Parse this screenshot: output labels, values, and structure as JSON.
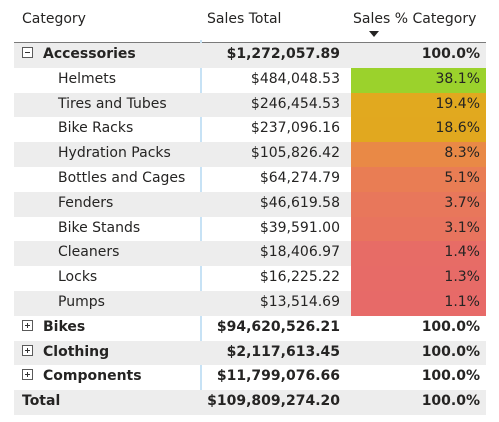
{
  "table": {
    "headers": {
      "category": "Category",
      "sales_total": "Sales Total",
      "sales_pct": "Sales % Category"
    },
    "sort": {
      "column": "sales_pct",
      "direction": "descending",
      "icon": "sort-descending-icon"
    },
    "rows": [
      {
        "level": 0,
        "toggle": "collapse",
        "category": "Accessories",
        "sales": "$1,272,057.89",
        "pct": "100.0%"
      },
      {
        "level": 1,
        "category": "Helmets",
        "sales": "$484,048.53",
        "pct": "38.1%",
        "pct_color": "#9bd22c"
      },
      {
        "level": 1,
        "category": "Tires and Tubes",
        "sales": "$246,454.53",
        "pct": "19.4%",
        "pct_color": "#e1a91f"
      },
      {
        "level": 1,
        "category": "Bike Racks",
        "sales": "$237,096.16",
        "pct": "18.6%",
        "pct_color": "#e1a81f"
      },
      {
        "level": 1,
        "category": "Hydration Packs",
        "sales": "$105,826.42",
        "pct": "8.3%",
        "pct_color": "#e98946"
      },
      {
        "level": 1,
        "category": "Bottles and Cages",
        "sales": "$64,274.79",
        "pct": "5.1%",
        "pct_color": "#e97d54"
      },
      {
        "level": 1,
        "category": "Fenders",
        "sales": "$46,619.58",
        "pct": "3.7%",
        "pct_color": "#e8775b"
      },
      {
        "level": 1,
        "category": "Bike Stands",
        "sales": "$39,591.00",
        "pct": "3.1%",
        "pct_color": "#e8745e"
      },
      {
        "level": 1,
        "category": "Cleaners",
        "sales": "$18,406.97",
        "pct": "1.4%",
        "pct_color": "#e76c66"
      },
      {
        "level": 1,
        "category": "Locks",
        "sales": "$16,225.22",
        "pct": "1.3%",
        "pct_color": "#e76b67"
      },
      {
        "level": 1,
        "category": "Pumps",
        "sales": "$13,514.69",
        "pct": "1.1%",
        "pct_color": "#e76a68"
      },
      {
        "level": 0,
        "toggle": "expand",
        "category": "Bikes",
        "sales": "$94,620,526.21",
        "pct": "100.0%"
      },
      {
        "level": 0,
        "toggle": "expand",
        "category": "Clothing",
        "sales": "$2,117,613.45",
        "pct": "100.0%"
      },
      {
        "level": 0,
        "toggle": "expand",
        "category": "Components",
        "sales": "$11,799,076.66",
        "pct": "100.0%"
      },
      {
        "level": 0,
        "toggle": "none",
        "category": "Total",
        "sales": "$109,809,274.20",
        "pct": "100.0%"
      }
    ]
  }
}
